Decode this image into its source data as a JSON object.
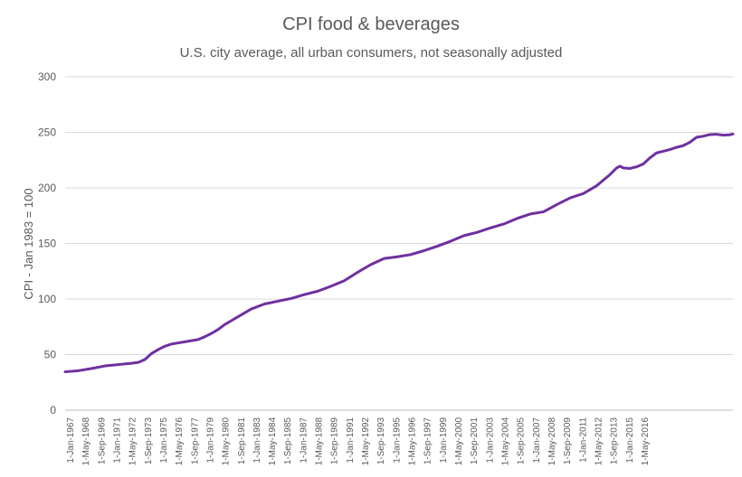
{
  "chart_data": {
    "type": "line",
    "title": "CPI food & beverages",
    "subtitle": "U.S. city average, all urban consumers, not seasonally adjusted",
    "xlabel": "",
    "ylabel": "CPI - Jan 1983 = 100",
    "ylim": [
      0,
      300
    ],
    "yticks": [
      0,
      50,
      100,
      150,
      200,
      250,
      300
    ],
    "grid": true,
    "legend": "none",
    "x_range": [
      1967.0,
      2017.25
    ],
    "categories": [
      "1-Jan-1967",
      "1-May-1968",
      "1-Sep-1969",
      "1-Jan-1971",
      "1-May-1972",
      "1-Sep-1973",
      "1-Jan-1975",
      "1-May-1976",
      "1-Sep-1977",
      "1-Jan-1979",
      "1-May-1980",
      "1-Sep-1981",
      "1-Jan-1983",
      "1-May-1984",
      "1-Sep-1985",
      "1-Jan-1987",
      "1-May-1988",
      "1-Sep-1989",
      "1-Jan-1991",
      "1-May-1992",
      "1-Sep-1993",
      "1-Jan-1995",
      "1-May-1996",
      "1-Sep-1997",
      "1-Jan-1999",
      "1-May-2000",
      "1-Sep-2001",
      "1-Jan-2003",
      "1-May-2004",
      "1-Sep-2005",
      "1-Jan-2007",
      "1-May-2008",
      "1-Sep-2009",
      "1-Jan-2011",
      "1-May-2012",
      "1-Sep-2013",
      "1-Jan-2015",
      "1-May-2016"
    ],
    "series": [
      {
        "name": "CPI food & beverages",
        "color": "#7030a0",
        "x": [
          1967.0,
          1968.0,
          1969.0,
          1970.0,
          1971.0,
          1972.0,
          1972.5,
          1973.0,
          1973.5,
          1974.0,
          1974.5,
          1975.0,
          1976.0,
          1977.0,
          1977.5,
          1978.0,
          1978.5,
          1979.0,
          1979.5,
          1980.0,
          1981.0,
          1982.0,
          1983.0,
          1984.0,
          1985.0,
          1986.0,
          1987.0,
          1988.0,
          1989.0,
          1990.0,
          1991.0,
          1992.0,
          1993.0,
          1994.0,
          1995.0,
          1996.0,
          1997.0,
          1998.0,
          1999.0,
          2000.0,
          2001.0,
          2002.0,
          2003.0,
          2004.0,
          2005.0,
          2006.0,
          2007.0,
          2007.5,
          2008.0,
          2008.5,
          2008.75,
          2009.0,
          2009.5,
          2010.0,
          2010.5,
          2011.0,
          2011.5,
          2012.0,
          2012.5,
          2013.0,
          2013.5,
          2014.0,
          2014.5,
          2015.0,
          2015.5,
          2016.0,
          2016.5,
          2017.0,
          2017.25
        ],
        "values": [
          34.5,
          35.5,
          37.5,
          39.8,
          41.0,
          42.2,
          43.0,
          45.5,
          51.0,
          54.5,
          57.5,
          59.5,
          61.5,
          63.5,
          66.0,
          69.0,
          72.5,
          77.0,
          80.5,
          84.0,
          91.0,
          95.5,
          98.0,
          100.5,
          104.0,
          107.0,
          111.5,
          116.5,
          124.0,
          131.0,
          136.5,
          138.0,
          140.0,
          143.5,
          147.5,
          152.0,
          157.0,
          160.0,
          164.0,
          167.5,
          172.5,
          176.5,
          178.5,
          185.0,
          191.0,
          195.0,
          202.0,
          207.0,
          212.0,
          218.0,
          219.5,
          218.0,
          217.5,
          219.0,
          221.5,
          227.0,
          231.5,
          233.0,
          234.5,
          236.5,
          238.0,
          241.0,
          245.5,
          246.5,
          248.0,
          248.3,
          247.5,
          247.8,
          248.5
        ]
      }
    ]
  }
}
